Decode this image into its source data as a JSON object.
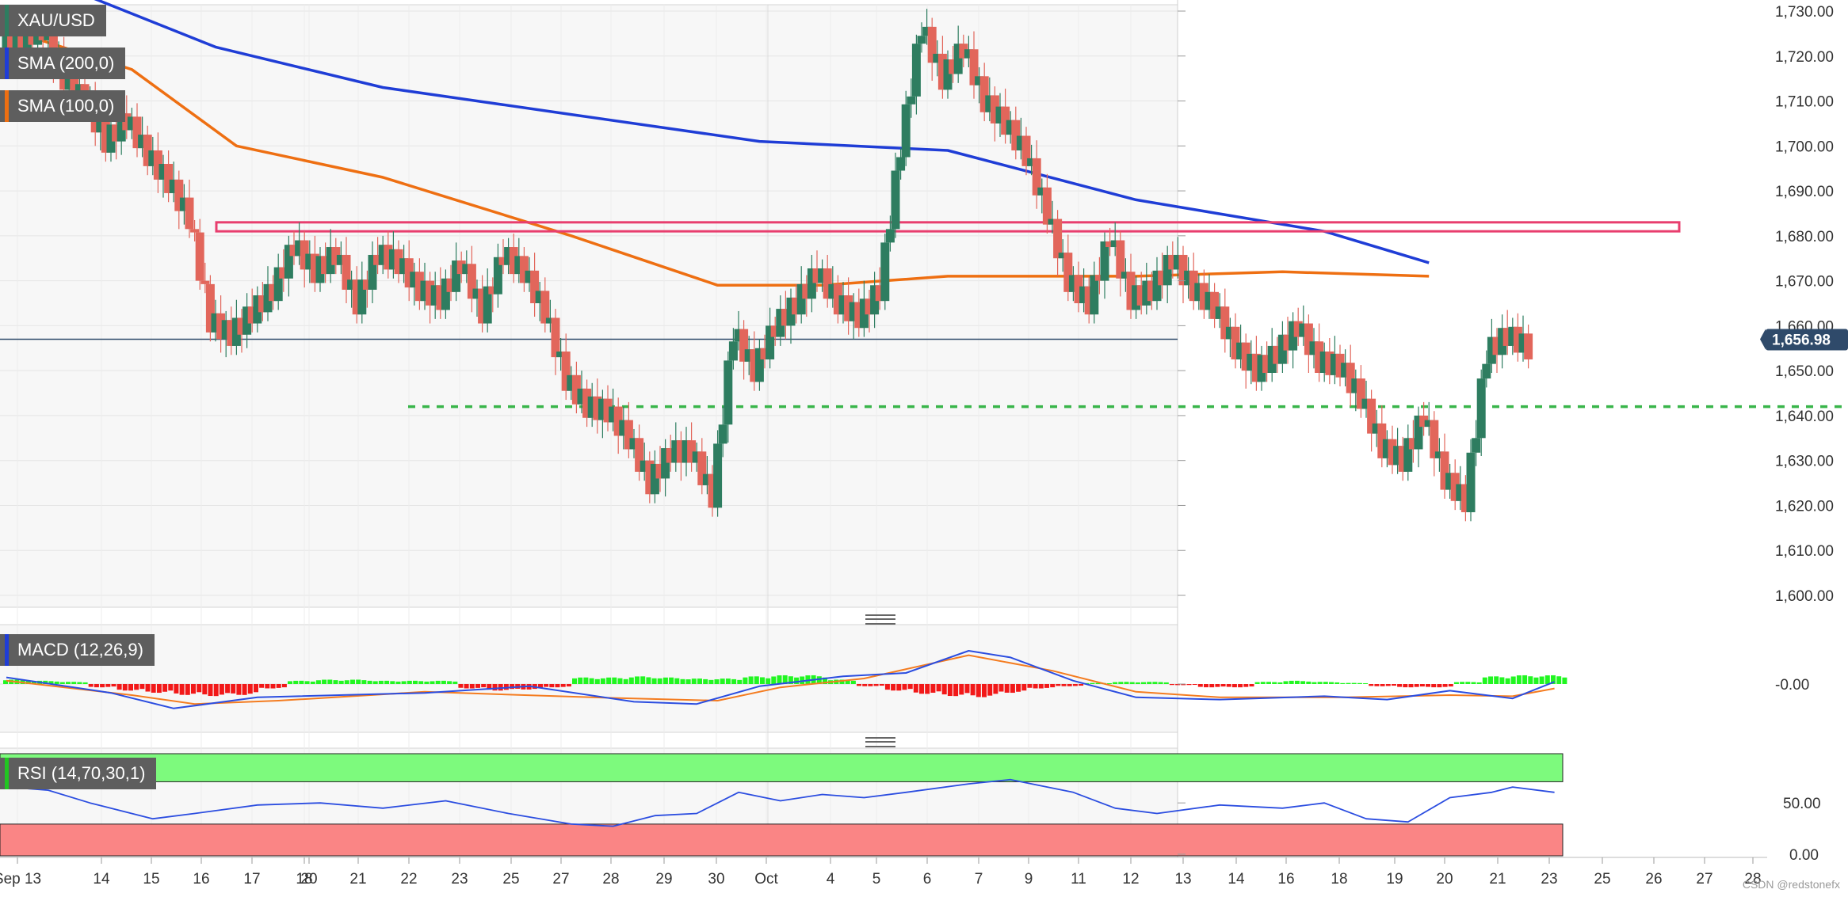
{
  "chart_data": {
    "type": "candlestick",
    "symbol": "XAU/USD",
    "indicators": {
      "sma200_label": "SMA (200,0)",
      "sma100_label": "SMA (100,0)",
      "macd_label": "MACD (12,26,9)",
      "rsi_label": "RSI (14,70,30,1)"
    },
    "colors": {
      "up": "#2e7d60",
      "down": "#e2665b",
      "sma200": "#1f3dd6",
      "sma100": "#ee6f12",
      "macd_pos": "#21f621",
      "macd_neg": "#f21818",
      "macd_line": "#2b4de0",
      "signal_line": "#f47c20",
      "rsi_line": "#2b4de0",
      "resistance": "#e83e6e",
      "support": "#39b54a",
      "rsi_overbought_fill": "#7dfa7d",
      "rsi_oversold_fill": "#fa8585",
      "current_price_bg": "#2f4a6a"
    },
    "price_axis": {
      "min": 1600,
      "max": 1730,
      "ticks": [
        "1,730.00",
        "1,720.00",
        "1,710.00",
        "1,700.00",
        "1,690.00",
        "1,680.00",
        "1,670.00",
        "1,660.00",
        "1,650.00",
        "1,640.00",
        "1,630.00",
        "1,620.00",
        "1,610.00",
        "1,600.00"
      ]
    },
    "macd_axis": {
      "ticks": [
        "-0.00"
      ]
    },
    "rsi_axis": {
      "ticks": [
        "50.00",
        "0.00"
      ],
      "overbought": 70,
      "oversold": 30
    },
    "x_ticks": [
      "Sep 13",
      "14",
      "15",
      "16",
      "17",
      "18",
      "20",
      "21",
      "22",
      "23",
      "25",
      "27",
      "28",
      "29",
      "30",
      "Oct",
      "4",
      "5",
      "6",
      "7",
      "9",
      "11",
      "12",
      "13",
      "14",
      "16",
      "18",
      "19",
      "20",
      "21",
      "23",
      "25",
      "26",
      "27",
      "28"
    ],
    "current_price": "1,656.98",
    "current_price_value": 1656.98,
    "resistance_zone": [
      1681,
      1683
    ],
    "support_level": 1642,
    "price_path": [
      [
        0,
        1724
      ],
      [
        1,
        1726
      ],
      [
        2,
        1715
      ],
      [
        3,
        1710
      ],
      [
        4,
        1701
      ],
      [
        5,
        1706
      ],
      [
        6,
        1698
      ],
      [
        7,
        1692
      ],
      [
        8,
        1684
      ],
      [
        9,
        1661
      ],
      [
        10,
        1658
      ],
      [
        11,
        1663
      ],
      [
        12,
        1668
      ],
      [
        13,
        1678
      ],
      [
        14,
        1672
      ],
      [
        15,
        1676
      ],
      [
        16,
        1665
      ],
      [
        17,
        1676
      ],
      [
        18,
        1674
      ],
      [
        19,
        1668
      ],
      [
        20,
        1666
      ],
      [
        21,
        1674
      ],
      [
        22,
        1663
      ],
      [
        23,
        1676
      ],
      [
        24,
        1672
      ],
      [
        25,
        1663
      ],
      [
        26,
        1648
      ],
      [
        27,
        1642
      ],
      [
        28,
        1641
      ],
      [
        29,
        1635
      ],
      [
        30,
        1625
      ],
      [
        31,
        1632
      ],
      [
        32,
        1632
      ],
      [
        33,
        1622
      ],
      [
        34,
        1659
      ],
      [
        35,
        1650
      ],
      [
        36,
        1660
      ],
      [
        37,
        1665
      ],
      [
        38,
        1672
      ],
      [
        39,
        1665
      ],
      [
        40,
        1662
      ],
      [
        41,
        1668
      ],
      [
        42,
        1700
      ],
      [
        43,
        1727
      ],
      [
        44,
        1715
      ],
      [
        45,
        1722
      ],
      [
        46,
        1710
      ],
      [
        47,
        1705
      ],
      [
        48,
        1698
      ],
      [
        49,
        1685
      ],
      [
        50,
        1670
      ],
      [
        51,
        1665
      ],
      [
        52,
        1680
      ],
      [
        53,
        1666
      ],
      [
        54,
        1668
      ],
      [
        55,
        1675
      ],
      [
        56,
        1668
      ],
      [
        57,
        1664
      ],
      [
        58,
        1655
      ],
      [
        59,
        1650
      ],
      [
        60,
        1654
      ],
      [
        61,
        1660
      ],
      [
        62,
        1652
      ],
      [
        63,
        1651
      ],
      [
        64,
        1644
      ],
      [
        65,
        1633
      ],
      [
        66,
        1630
      ],
      [
        67,
        1640
      ],
      [
        68,
        1626
      ],
      [
        69,
        1621
      ],
      [
        70,
        1654
      ],
      [
        71,
        1658
      ],
      [
        72,
        1655
      ]
    ],
    "sma200_path": [
      [
        3,
        1735
      ],
      [
        10,
        1722
      ],
      [
        18,
        1713
      ],
      [
        27,
        1707
      ],
      [
        36,
        1701
      ],
      [
        45,
        1699
      ],
      [
        54,
        1688
      ],
      [
        63,
        1681
      ],
      [
        68,
        1674
      ]
    ],
    "sma100_path": [
      [
        0,
        1726
      ],
      [
        6,
        1717
      ],
      [
        11,
        1700
      ],
      [
        18,
        1693
      ],
      [
        27,
        1680
      ],
      [
        34,
        1669
      ],
      [
        39,
        1669
      ],
      [
        45,
        1671
      ],
      [
        54,
        1671
      ],
      [
        61,
        1672
      ],
      [
        68,
        1671
      ]
    ],
    "macd_hist": [
      0.4,
      0.3,
      0.2,
      -0.3,
      -0.6,
      -0.8,
      -1.0,
      -1.1,
      -1.0,
      -0.4,
      0.3,
      0.4,
      0.4,
      0.3,
      0.3,
      0.3,
      -0.4,
      -0.6,
      -0.5,
      -0.3,
      0.6,
      0.6,
      0.7,
      0.6,
      0.5,
      0.5,
      0.7,
      0.8,
      0.8,
      0.4,
      -0.2,
      -0.6,
      -0.9,
      -1.1,
      -1.2,
      -0.8,
      -0.4,
      -0.2,
      0.1,
      0.2,
      0.2,
      -0.1,
      -0.3,
      -0.3,
      0.2,
      0.3,
      0.2,
      0.1,
      -0.2,
      -0.3,
      -0.3,
      0.2,
      0.7,
      0.8,
      0.8
    ],
    "macd_line": [
      [
        0,
        0.6
      ],
      [
        5,
        -0.8
      ],
      [
        8,
        -2.2
      ],
      [
        12,
        -1.2
      ],
      [
        20,
        -0.8
      ],
      [
        25,
        -0.2
      ],
      [
        30,
        -1.6
      ],
      [
        33,
        -1.8
      ],
      [
        36,
        -0.2
      ],
      [
        40,
        0.7
      ],
      [
        43,
        1.0
      ],
      [
        46,
        3.0
      ],
      [
        48,
        2.4
      ],
      [
        51,
        0.3
      ],
      [
        54,
        -1.2
      ],
      [
        58,
        -1.4
      ],
      [
        63,
        -1.1
      ],
      [
        66,
        -1.4
      ],
      [
        69,
        -0.6
      ],
      [
        72,
        -1.3
      ],
      [
        74,
        0.2
      ]
    ],
    "signal_line": [
      [
        0,
        0.3
      ],
      [
        6,
        -1.0
      ],
      [
        9,
        -1.8
      ],
      [
        13,
        -1.5
      ],
      [
        20,
        -0.7
      ],
      [
        28,
        -1.2
      ],
      [
        34,
        -1.5
      ],
      [
        37,
        -0.3
      ],
      [
        41,
        0.5
      ],
      [
        46,
        2.6
      ],
      [
        50,
        1.2
      ],
      [
        54,
        -0.7
      ],
      [
        58,
        -1.2
      ],
      [
        64,
        -1.2
      ],
      [
        69,
        -1.0
      ],
      [
        72,
        -1.1
      ],
      [
        74,
        -0.4
      ]
    ],
    "rsi_path": [
      [
        0,
        65
      ],
      [
        2,
        62
      ],
      [
        4,
        50
      ],
      [
        7,
        35
      ],
      [
        9,
        40
      ],
      [
        12,
        48
      ],
      [
        15,
        50
      ],
      [
        18,
        45
      ],
      [
        21,
        52
      ],
      [
        24,
        40
      ],
      [
        27,
        30
      ],
      [
        29,
        28
      ],
      [
        31,
        38
      ],
      [
        33,
        40
      ],
      [
        35,
        60
      ],
      [
        37,
        52
      ],
      [
        39,
        58
      ],
      [
        41,
        55
      ],
      [
        43,
        60
      ],
      [
        46,
        68
      ],
      [
        48,
        72
      ],
      [
        51,
        60
      ],
      [
        53,
        45
      ],
      [
        55,
        40
      ],
      [
        58,
        48
      ],
      [
        61,
        45
      ],
      [
        63,
        50
      ],
      [
        65,
        35
      ],
      [
        67,
        32
      ],
      [
        69,
        55
      ],
      [
        71,
        60
      ],
      [
        72,
        65
      ],
      [
        74,
        60
      ]
    ]
  }
}
